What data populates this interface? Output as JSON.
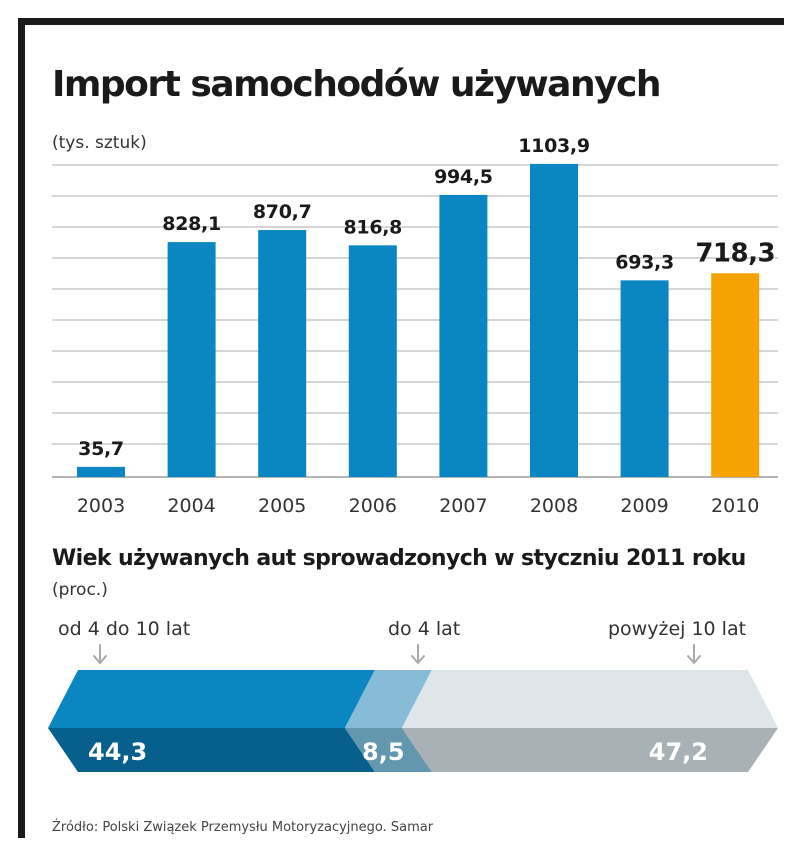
{
  "chart_data": [
    {
      "type": "bar",
      "title": "Import samochodów używanych",
      "ylabel": "(tys. sztuk)",
      "categories": [
        "2003",
        "2004",
        "2005",
        "2006",
        "2007",
        "2008",
        "2009",
        "2010"
      ],
      "values": [
        35.7,
        828.1,
        870.7,
        816.8,
        994.5,
        1103.9,
        693.3,
        718.3
      ],
      "value_labels": [
        "35,7",
        "828,1",
        "870,7",
        "816,8",
        "994,5",
        "1103,9",
        "693,3",
        "718,3"
      ],
      "highlight_index": 7,
      "ylim": [
        0,
        1100
      ],
      "grid": true,
      "colors": {
        "bar": "#0a86c2",
        "highlight": "#f4a300",
        "grid": "#bdbdbd"
      }
    },
    {
      "type": "bar",
      "orientation": "horizontal-stacked",
      "title": "Wiek używanych aut sprowadzonych w styczniu 2011 roku",
      "ylabel": "(proc.)",
      "segments": [
        {
          "name": "od 4 do 10 lat",
          "value": 44.3,
          "label": "44,3",
          "color_top": "#0a86c2",
          "color_bottom": "#075f8c"
        },
        {
          "name": "do 4 lat",
          "value": 8.5,
          "label": "8,5",
          "color_top": "#86bcd6",
          "color_bottom": "#6397ad"
        },
        {
          "name": "powyżej 10 lat",
          "value": 47.2,
          "label": "47,2",
          "color_top": "#dfe6e9",
          "color_bottom": "#a8b1b5"
        }
      ]
    }
  ],
  "source": "Źródło: Polski Związek Przemysłu Motoryzacyjnego. Samar"
}
